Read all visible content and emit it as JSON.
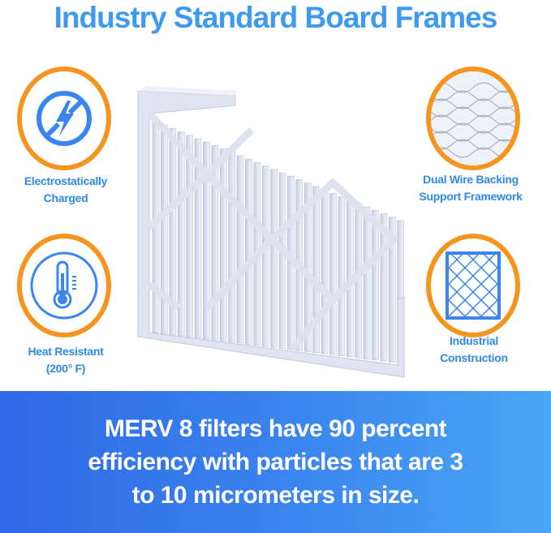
{
  "title": "Industry Standard Board Frames",
  "features": [
    {
      "icon": "no-static-icon",
      "line1": "Electrostatically",
      "line2": "Charged"
    },
    {
      "icon": "thermometer-icon",
      "line1": "Heat Resistant",
      "line2": "(200° F)"
    },
    {
      "icon": "wire-mesh-icon",
      "line1": "Dual Wire Backing",
      "line2": "Support Framework"
    },
    {
      "icon": "grid-frame-icon",
      "line1": "Industrial",
      "line2": "Construction"
    }
  ],
  "banner": {
    "line1": "MERV 8 filters have 90 percent",
    "line2": "efficiency with particles that are 3",
    "line3": "to 10 micrometers in size."
  },
  "colors": {
    "title": "#3d9af0",
    "accent_ring": "#f5941e",
    "icon_blue": "#3a86ee",
    "banner_start": "#2e68e6",
    "banner_end": "#4aa6f6"
  }
}
